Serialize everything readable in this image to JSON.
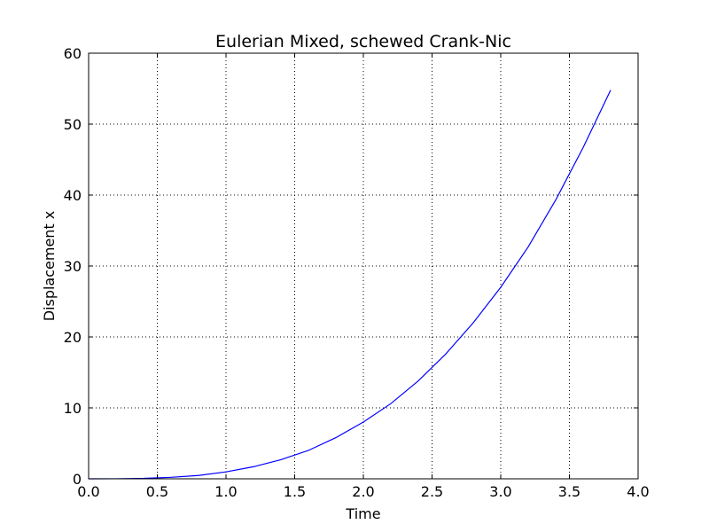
{
  "chart_data": {
    "type": "line",
    "title": "Eulerian Mixed, schewed Crank-Nic",
    "xlabel": "Time",
    "ylabel": "Displacement x",
    "xlim": [
      0.0,
      4.0
    ],
    "ylim": [
      0,
      60
    ],
    "xticks": [
      "0.0",
      "0.5",
      "1.0",
      "1.5",
      "2.0",
      "2.5",
      "3.0",
      "3.5",
      "4.0"
    ],
    "yticks": [
      "0",
      "10",
      "20",
      "30",
      "40",
      "50",
      "60"
    ],
    "grid": true,
    "line_color": "#0000ff",
    "series": [
      {
        "x": [
          0.0,
          0.2,
          0.4,
          0.6,
          0.8,
          1.0,
          1.2,
          1.4,
          1.6,
          1.8,
          2.0,
          2.2,
          2.4,
          2.6,
          2.8,
          3.0,
          3.2,
          3.4,
          3.6,
          3.8
        ],
        "y": [
          0.0,
          0.01,
          0.06,
          0.21,
          0.47,
          0.98,
          1.7,
          2.7,
          4.0,
          5.8,
          8.0,
          10.6,
          13.8,
          17.6,
          22.0,
          27.0,
          32.7,
          39.3,
          46.7,
          54.8
        ]
      }
    ]
  }
}
